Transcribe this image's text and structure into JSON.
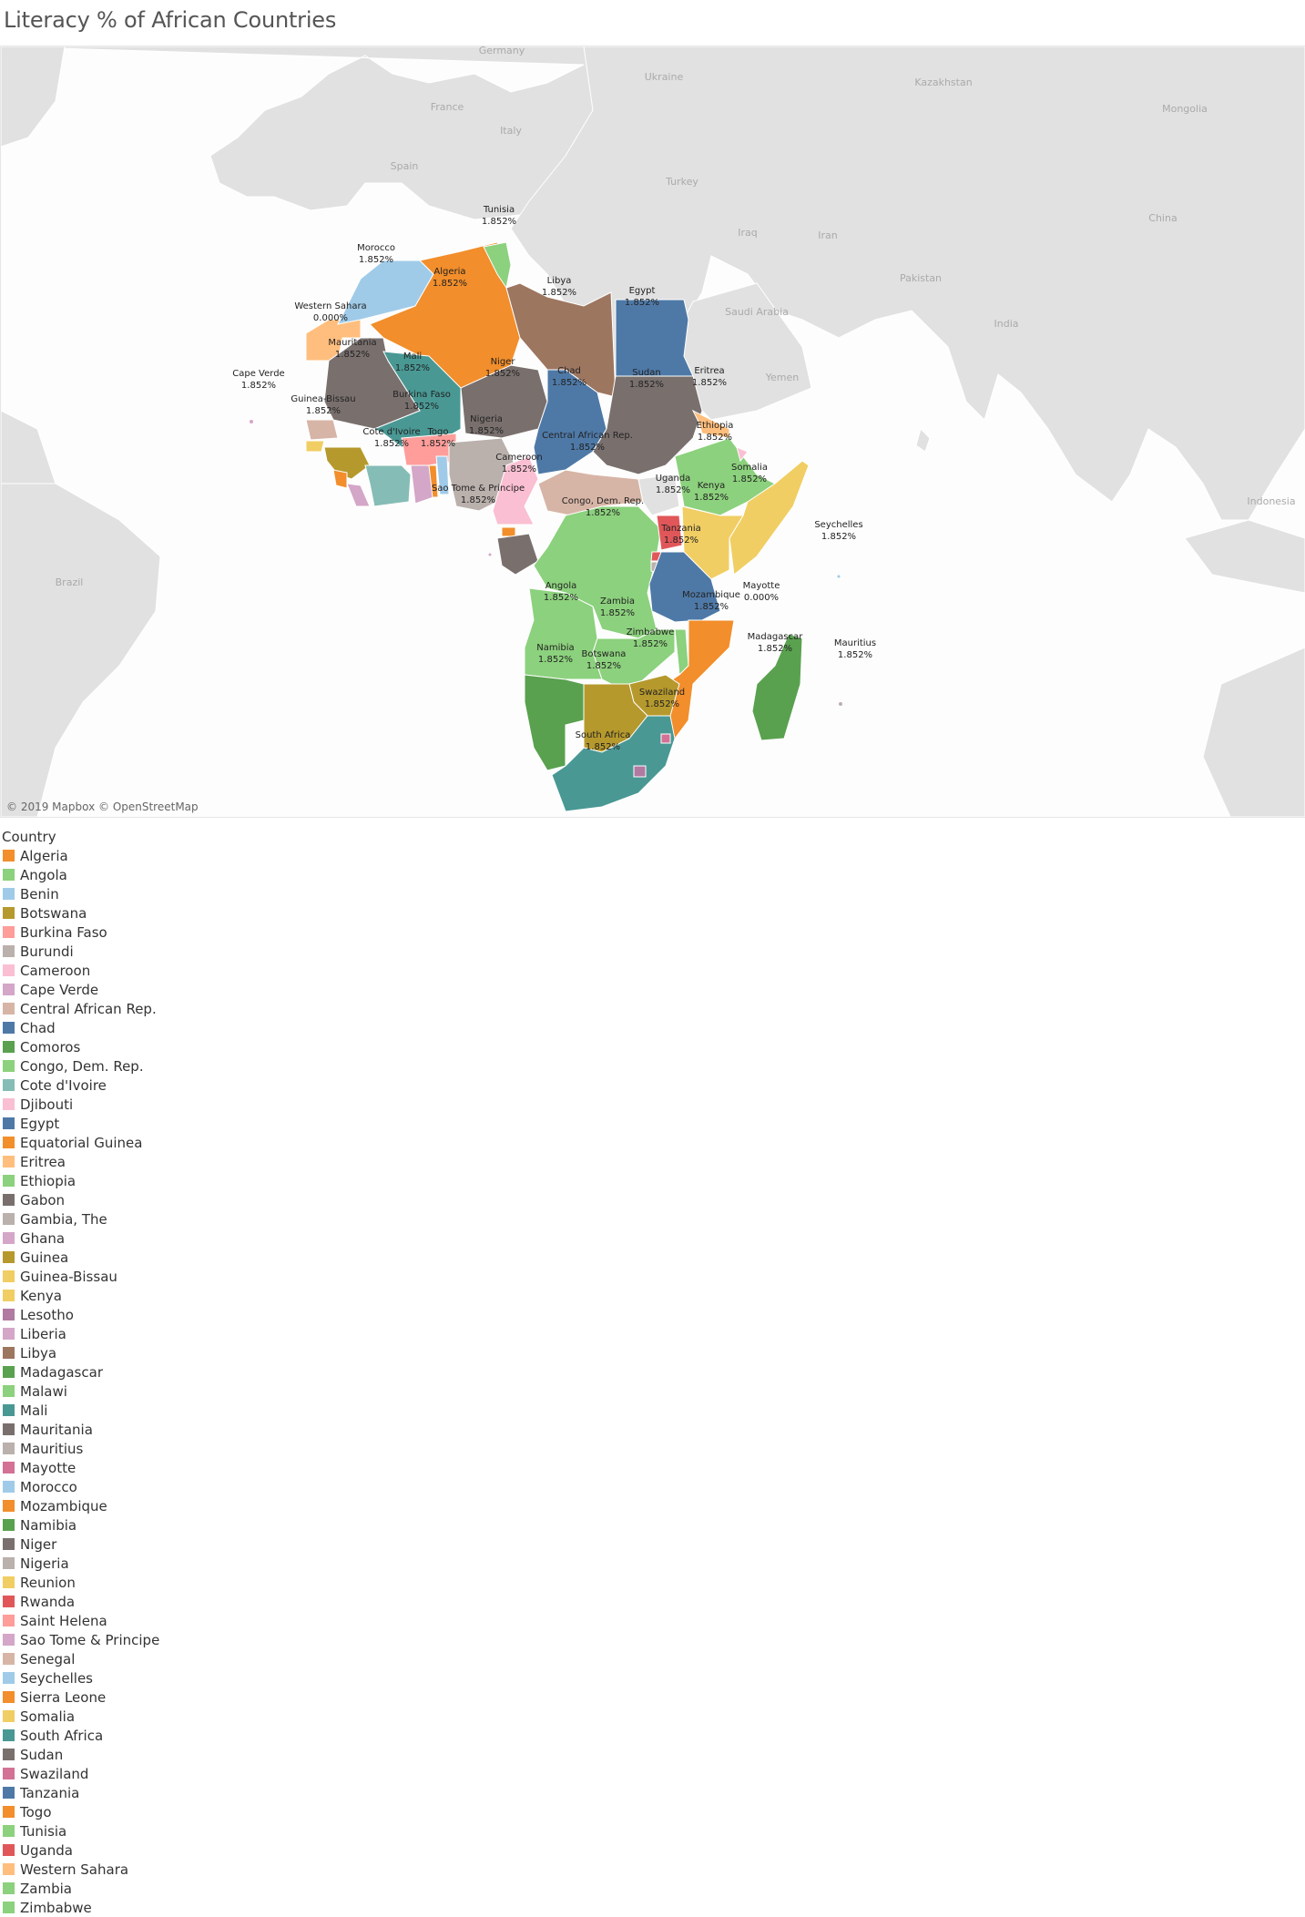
{
  "title": "Literacy % of African Countries",
  "map": {
    "attribution": "© 2019 Mapbox © OpenStreetMap",
    "land_color": "#e1e1e1",
    "water_color": "#fdfdfd",
    "geo_labels": [
      "Germany",
      "Ukraine",
      "Kazakhstan",
      "Mongolia",
      "France",
      "Italy",
      "Spain",
      "Turkey",
      "China",
      "Iraq",
      "Iran",
      "Pakistan",
      "Saudi Arabia",
      "India",
      "Yemen",
      "Indonesia",
      "Brazil"
    ],
    "country_labels": [
      {
        "name": "Tunisia",
        "value": "1.852%"
      },
      {
        "name": "Morocco",
        "value": "1.852%"
      },
      {
        "name": "Algeria",
        "value": "1.852%"
      },
      {
        "name": "Libya",
        "value": "1.852%"
      },
      {
        "name": "Egypt",
        "value": "1.852%"
      },
      {
        "name": "Western Sahara",
        "value": "0.000%"
      },
      {
        "name": "Mauritania",
        "value": "1.852%"
      },
      {
        "name": "Mali",
        "value": "1.852%"
      },
      {
        "name": "Niger",
        "value": "1.852%"
      },
      {
        "name": "Chad",
        "value": "1.852%"
      },
      {
        "name": "Sudan",
        "value": "1.852%"
      },
      {
        "name": "Eritrea",
        "value": "1.852%"
      },
      {
        "name": "Cape Verde",
        "value": "1.852%"
      },
      {
        "name": "Guinea-Bissau",
        "value": "1.852%"
      },
      {
        "name": "Burkina Faso",
        "value": "1.852%"
      },
      {
        "name": "Nigeria",
        "value": "1.852%"
      },
      {
        "name": "Ethiopia",
        "value": "1.852%"
      },
      {
        "name": "Cote d'Ivoire",
        "value": "1.852%"
      },
      {
        "name": "Togo",
        "value": "1.852%"
      },
      {
        "name": "Central African Rep.",
        "value": "1.852%"
      },
      {
        "name": "Cameroon",
        "value": "1.852%"
      },
      {
        "name": "Somalia",
        "value": "1.852%"
      },
      {
        "name": "Uganda",
        "value": "1.852%"
      },
      {
        "name": "Kenya",
        "value": "1.852%"
      },
      {
        "name": "Sao Tome & Principe",
        "value": "1.852%"
      },
      {
        "name": "Congo, Dem. Rep.",
        "value": "1.852%"
      },
      {
        "name": "Tanzania",
        "value": "1.852%"
      },
      {
        "name": "Seychelles",
        "value": "1.852%"
      },
      {
        "name": "Angola",
        "value": "1.852%"
      },
      {
        "name": "Zambia",
        "value": "1.852%"
      },
      {
        "name": "Mozambique",
        "value": "1.852%"
      },
      {
        "name": "Mayotte",
        "value": "0.000%"
      },
      {
        "name": "Zimbabwe",
        "value": "1.852%"
      },
      {
        "name": "Madagascar",
        "value": "1.852%"
      },
      {
        "name": "Mauritius",
        "value": "1.852%"
      },
      {
        "name": "Namibia",
        "value": "1.852%"
      },
      {
        "name": "Botswana",
        "value": "1.852%"
      },
      {
        "name": "Swaziland",
        "value": "1.852%"
      },
      {
        "name": "South Africa",
        "value": "1.852%"
      }
    ]
  },
  "legend": {
    "title": "Country",
    "items": [
      {
        "label": "Algeria",
        "color": "#f28e2b"
      },
      {
        "label": "Angola",
        "color": "#8cd17d"
      },
      {
        "label": "Benin",
        "color": "#a0cbe8"
      },
      {
        "label": "Botswana",
        "color": "#b6992d"
      },
      {
        "label": "Burkina Faso",
        "color": "#ff9d9a"
      },
      {
        "label": "Burundi",
        "color": "#bab0ac"
      },
      {
        "label": "Cameroon",
        "color": "#fabfd2"
      },
      {
        "label": "Cape Verde",
        "color": "#d4a6c8"
      },
      {
        "label": "Central African Rep.",
        "color": "#d7b5a6"
      },
      {
        "label": "Chad",
        "color": "#4e79a7"
      },
      {
        "label": "Comoros",
        "color": "#59a14f"
      },
      {
        "label": "Congo, Dem. Rep.",
        "color": "#8cd17d"
      },
      {
        "label": "Cote d'Ivoire",
        "color": "#86bcb6"
      },
      {
        "label": "Djibouti",
        "color": "#fabfd2"
      },
      {
        "label": "Egypt",
        "color": "#4e79a7"
      },
      {
        "label": "Equatorial Guinea",
        "color": "#f28e2b"
      },
      {
        "label": "Eritrea",
        "color": "#ffbe7d"
      },
      {
        "label": "Ethiopia",
        "color": "#8cd17d"
      },
      {
        "label": "Gabon",
        "color": "#79706e"
      },
      {
        "label": "Gambia, The",
        "color": "#bab0ac"
      },
      {
        "label": "Ghana",
        "color": "#d4a6c8"
      },
      {
        "label": "Guinea",
        "color": "#b6992d"
      },
      {
        "label": "Guinea-Bissau",
        "color": "#f1ce63"
      },
      {
        "label": "Kenya",
        "color": "#f1ce63"
      },
      {
        "label": "Lesotho",
        "color": "#b07aa1"
      },
      {
        "label": "Liberia",
        "color": "#d4a6c8"
      },
      {
        "label": "Libya",
        "color": "#9d7660"
      },
      {
        "label": "Madagascar",
        "color": "#59a14f"
      },
      {
        "label": "Malawi",
        "color": "#8cd17d"
      },
      {
        "label": "Mali",
        "color": "#499894"
      },
      {
        "label": "Mauritania",
        "color": "#79706e"
      },
      {
        "label": "Mauritius",
        "color": "#bab0ac"
      },
      {
        "label": "Mayotte",
        "color": "#d37295"
      },
      {
        "label": "Morocco",
        "color": "#a0cbe8"
      },
      {
        "label": "Mozambique",
        "color": "#f28e2b"
      },
      {
        "label": "Namibia",
        "color": "#59a14f"
      },
      {
        "label": "Niger",
        "color": "#79706e"
      },
      {
        "label": "Nigeria",
        "color": "#bab0ac"
      },
      {
        "label": "Reunion",
        "color": "#f1ce63"
      },
      {
        "label": "Rwanda",
        "color": "#e15759"
      },
      {
        "label": "Saint Helena",
        "color": "#ff9d9a"
      },
      {
        "label": "Sao Tome & Principe",
        "color": "#d4a6c8"
      },
      {
        "label": "Senegal",
        "color": "#d7b5a6"
      },
      {
        "label": "Seychelles",
        "color": "#a0cbe8"
      },
      {
        "label": "Sierra Leone",
        "color": "#f28e2b"
      },
      {
        "label": "Somalia",
        "color": "#f1ce63"
      },
      {
        "label": "South Africa",
        "color": "#499894"
      },
      {
        "label": "Sudan",
        "color": "#79706e"
      },
      {
        "label": "Swaziland",
        "color": "#d37295"
      },
      {
        "label": "Tanzania",
        "color": "#4e79a7"
      },
      {
        "label": "Togo",
        "color": "#f28e2b"
      },
      {
        "label": "Tunisia",
        "color": "#8cd17d"
      },
      {
        "label": "Uganda",
        "color": "#e15759"
      },
      {
        "label": "Western Sahara",
        "color": "#ffbe7d"
      },
      {
        "label": "Zambia",
        "color": "#8cd17d"
      },
      {
        "label": "Zimbabwe",
        "color": "#8cd17d"
      }
    ]
  }
}
